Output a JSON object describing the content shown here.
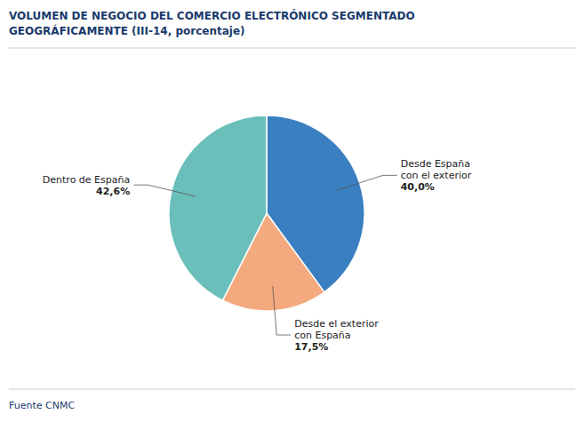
{
  "chart_data": {
    "type": "pie",
    "title": "VOLUMEN  DE  NEGOCIO  DEL  COMERCIO  ELECTRÓNICO  SEGMENTADO\nGEOGRÁFICAMENTE (III-14, porcentaje)",
    "categories": [
      "Desde España\ncon el exterior",
      "Desde el exterior\ncon España",
      "Dentro de España"
    ],
    "values": [
      40.0,
      17.5,
      42.6
    ],
    "value_labels": [
      "40,0%",
      "17,5%",
      "42,6%"
    ],
    "data_labels": true,
    "colors": [
      "#3a7fc1",
      "#f4a97f",
      "#6bbfba"
    ],
    "annotations": [
      "Fuente CNMC"
    ]
  }
}
